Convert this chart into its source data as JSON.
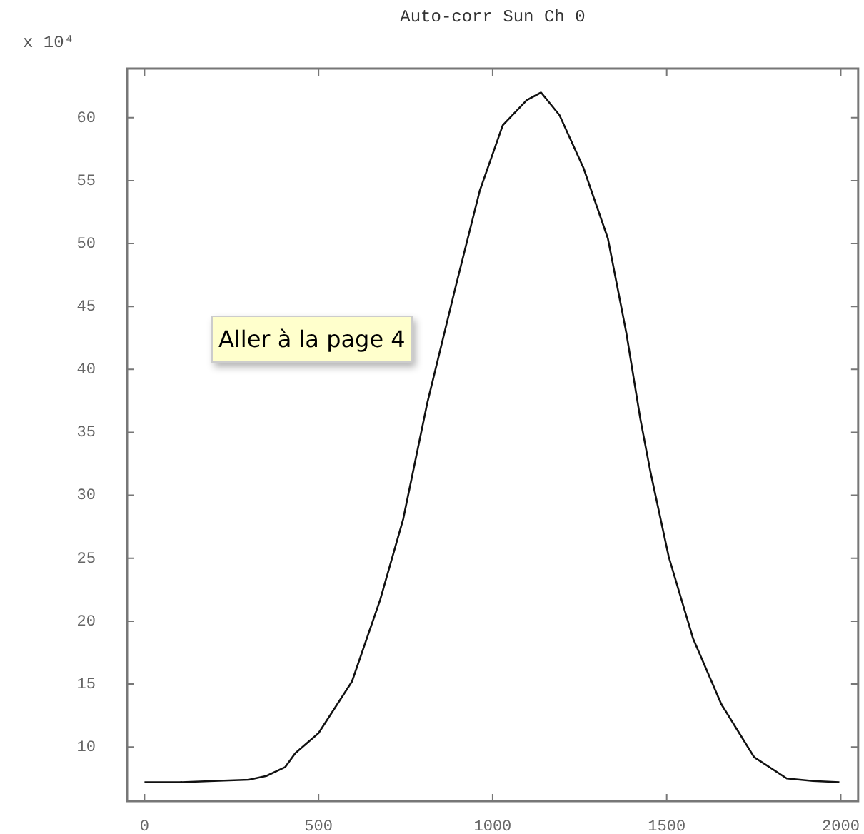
{
  "chart_data": {
    "type": "line",
    "title": "Auto-corr Sun Ch 0",
    "ylabel": "x 10⁴",
    "annotations": [
      "Aller à la page 4"
    ],
    "series": [
      {
        "color": "#111111",
        "x": [
          0,
          100,
          200,
          300,
          350,
          404,
          433,
          500,
          596,
          677,
          743,
          812,
          894,
          963,
          1029,
          1098,
          1139,
          1192,
          1261,
          1331,
          1384,
          1424,
          1453,
          1506,
          1576,
          1657,
          1751,
          1845,
          1920,
          1996
        ],
        "values": [
          7.2,
          7.2,
          7.3,
          7.4,
          7.7,
          8.4,
          9.5,
          11.1,
          15.2,
          21.7,
          28.1,
          37.3,
          46.6,
          54.2,
          59.4,
          61.4,
          62.0,
          60.2,
          56.0,
          50.4,
          42.9,
          36.1,
          31.9,
          25.1,
          18.6,
          13.4,
          9.2,
          7.5,
          7.3,
          7.2
        ]
      }
    ],
    "xlim": [
      -50,
      2050
    ],
    "xticks": [
      0,
      500,
      1000,
      1500,
      2000
    ],
    "ylim": [
      5.7,
      63.9
    ],
    "yticks": [
      10,
      15,
      20,
      25,
      30,
      35,
      40,
      45,
      50,
      55,
      60
    ],
    "grid": false,
    "legend": false,
    "marker": "none",
    "line_style": "solid"
  }
}
